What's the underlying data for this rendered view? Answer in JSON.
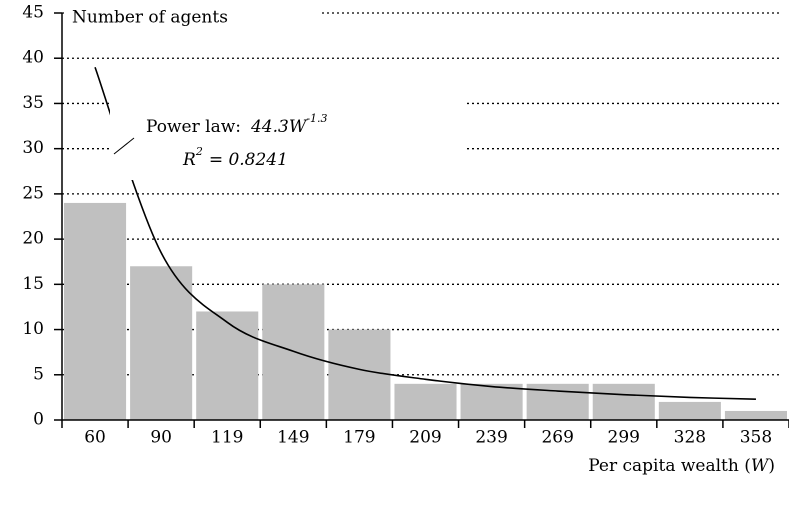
{
  "chart_data": {
    "type": "bar",
    "y_label": "Number of agents",
    "x_label": "Per capita wealth (",
    "x_label_var": "W",
    "x_label_end": ")",
    "categories": [
      "60",
      "90",
      "119",
      "149",
      "179",
      "209",
      "239",
      "269",
      "299",
      "328",
      "358"
    ],
    "values": [
      24,
      17,
      12,
      15,
      10,
      4,
      4,
      4,
      4,
      2,
      1
    ],
    "color": "#c0c0c0",
    "trendline": {
      "values": [
        39,
        18.5,
        10.8,
        7.6,
        5.6,
        4.5,
        3.7,
        3.2,
        2.8,
        2.5,
        2.3
      ],
      "color": "#000000"
    },
    "annotation": {
      "label": "Power law:",
      "equation": "44.3W",
      "exponent": "-1.3",
      "r2_symbol": "R",
      "r2_power": "2",
      "r2_value": "= 0.8241"
    },
    "ylim": [
      0,
      45
    ],
    "yticks": [
      0,
      5,
      10,
      15,
      20,
      25,
      30,
      35,
      40,
      45
    ],
    "grid": true
  }
}
